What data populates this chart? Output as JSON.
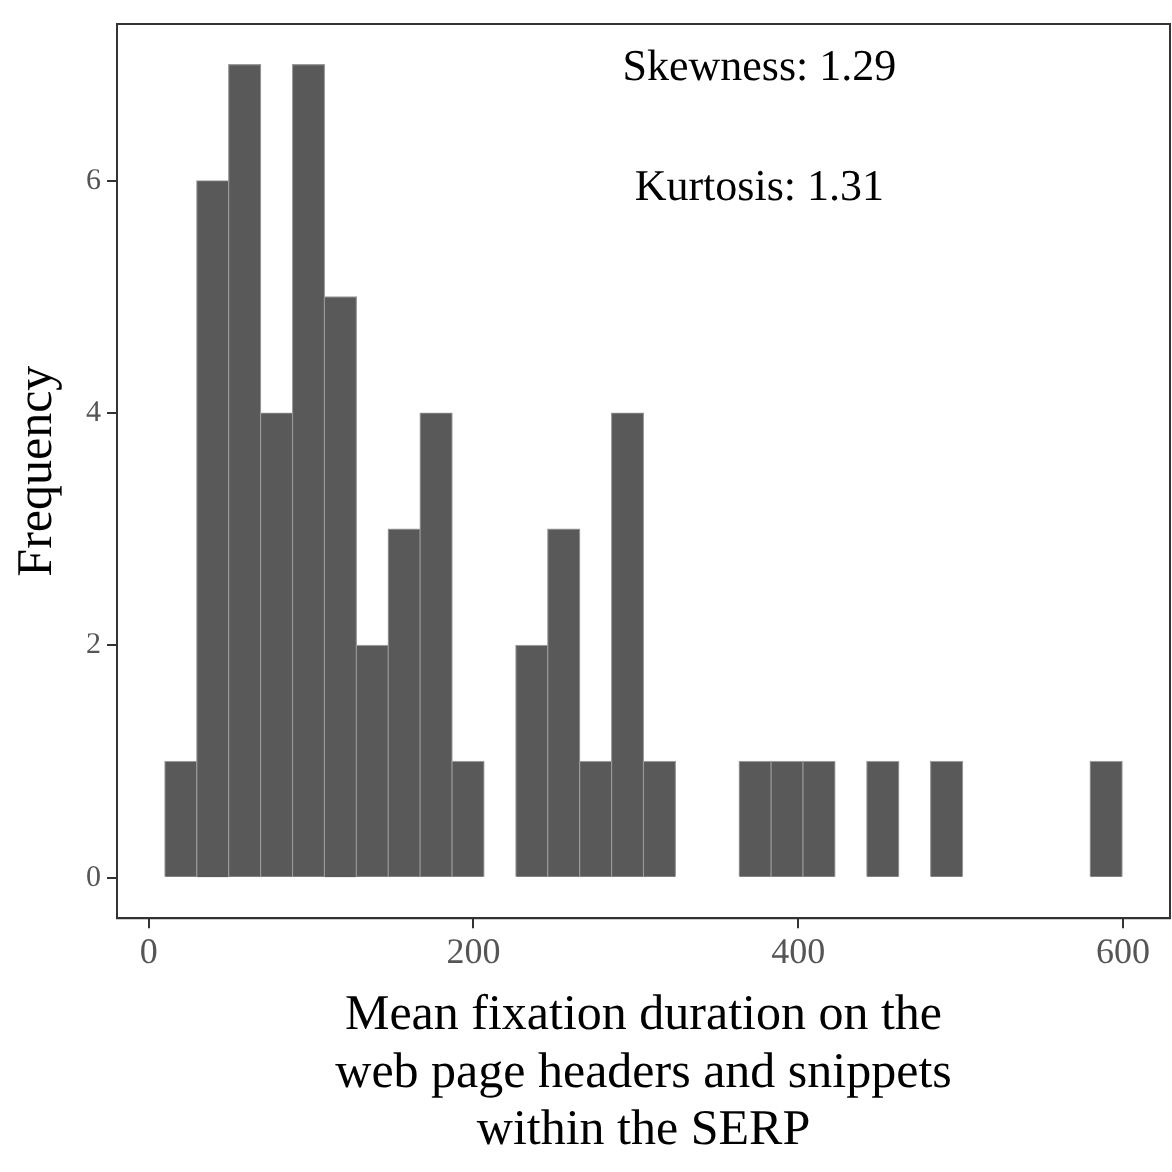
{
  "chart_data": {
    "type": "histogram",
    "xlabel": "Mean fixation duration on the web page headers and snippets within the SERP",
    "ylabel": "Frequency",
    "bins": [
      10,
      29.65,
      49.3,
      68.95,
      88.6,
      108.25,
      127.9,
      147.55,
      167.2,
      186.85,
      206.5,
      226.15,
      245.8,
      265.45,
      285.1,
      304.75,
      324.4,
      344.05,
      363.7,
      383.35,
      403,
      422.65,
      442.3,
      461.95,
      481.6,
      501.25,
      520.9,
      540.55,
      560.2,
      579.85,
      599.5
    ],
    "values": [
      1,
      6,
      7,
      4,
      7,
      5,
      2,
      3,
      4,
      1,
      0,
      2,
      3,
      1,
      4,
      1,
      0,
      0,
      1,
      1,
      1,
      0,
      1,
      0,
      1,
      0,
      0,
      0,
      0,
      1
    ],
    "color": "#595959",
    "xlim": [
      -19.5,
      629
    ],
    "xticks": [
      0,
      200,
      400,
      600
    ],
    "ylim": [
      -0.35,
      7.35
    ],
    "yticks": [
      0,
      2,
      4,
      6
    ],
    "grid": false,
    "annotations": [
      "Skewness: 1.29",
      "Kurtosis: 1.31"
    ]
  }
}
